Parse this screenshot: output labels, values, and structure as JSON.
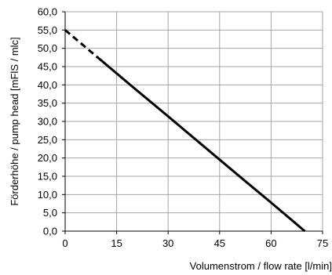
{
  "chart_data": {
    "type": "line",
    "title": "",
    "xlabel": "Volumenstrom / flow rate [l/min]",
    "ylabel": "Förderhöhe / pump head [mFlS / mlc]",
    "xlim": [
      0,
      75
    ],
    "ylim": [
      0,
      60
    ],
    "xticks": [
      0,
      15,
      30,
      45,
      60,
      75
    ],
    "xtick_labels": [
      "0",
      "15",
      "30",
      "45",
      "60",
      "75"
    ],
    "yticks": [
      0,
      5,
      10,
      15,
      20,
      25,
      30,
      35,
      40,
      45,
      50,
      55,
      60
    ],
    "ytick_labels": [
      "0,0",
      "5,0",
      "10,0",
      "15,0",
      "20,0",
      "25,0",
      "30,0",
      "35,0",
      "40,0",
      "45,0",
      "50,0",
      "55,0",
      "60,0"
    ],
    "grid": true,
    "series": [
      {
        "style": "dashed",
        "color": "#000000",
        "x": [
          0,
          10
        ],
        "y": [
          55.0,
          47.1
        ]
      },
      {
        "style": "solid",
        "color": "#000000",
        "x": [
          10,
          20,
          30,
          40,
          50,
          60,
          69.8
        ],
        "y": [
          47.1,
          39.2,
          31.4,
          23.5,
          15.6,
          7.8,
          0.0
        ]
      }
    ]
  }
}
